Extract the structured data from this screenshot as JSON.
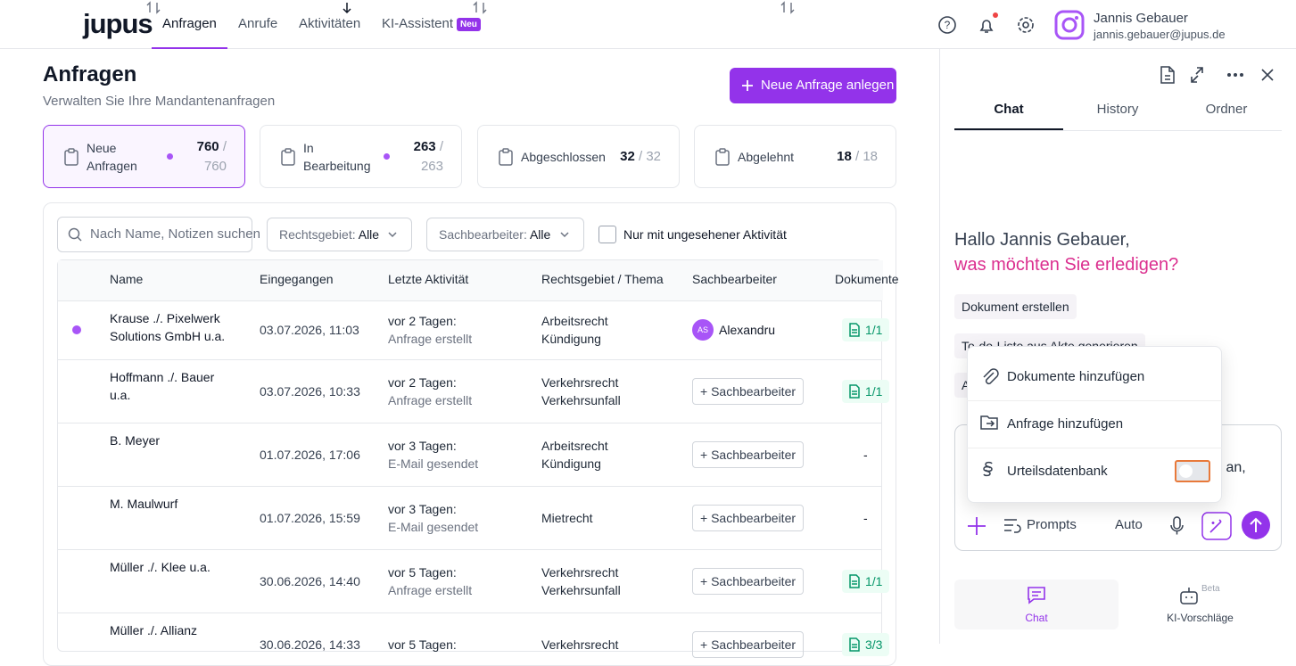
{
  "header": {
    "logo": "jupus",
    "nav": [
      "Anfragen",
      "Anrufe",
      "Aktivitäten",
      "KI-Assistent"
    ],
    "badge": "Neu",
    "user_name": "Jannis Gebauer",
    "user_email": "jannis.gebauer@jupus.de"
  },
  "page": {
    "title": "Anfragen",
    "subtitle": "Verwalten Sie Ihre Mandantenanfragen",
    "button": "Neue Anfrage anlegen"
  },
  "stats": {
    "separator": "/",
    "cards": [
      {
        "label": "Neue Anfragen",
        "count": 760,
        "total": 760,
        "dot": true,
        "selected": true
      },
      {
        "label": "In Bearbeitung",
        "count": 263,
        "total": 263,
        "dot": true,
        "selected": false
      },
      {
        "label": "Abgeschlossen",
        "count": 32,
        "total": 32,
        "dot": false,
        "selected": false
      },
      {
        "label": "Abgelehnt",
        "count": 18,
        "total": 18,
        "dot": false,
        "selected": false
      }
    ]
  },
  "filters": {
    "search": "Nach Name, Notizen suchen",
    "area_label": "Rechtsgebiet:",
    "area_value": "Alle",
    "agent_label": "Sachbearbeiter:",
    "agent_value": "Alle",
    "checkbox": "Nur mit ungesehener Aktivität"
  },
  "table": {
    "columns": [
      "Name",
      "Eingegangen",
      "Letzte Aktivität",
      "Rechtsgebiet / Thema",
      "Sachbearbeiter",
      "Dokumente"
    ],
    "rows": [
      {
        "unread": true,
        "name": "Krause ./. Pixelwerk Solutions GmbH u.a.",
        "date": "03.07.2026, 11:03",
        "activity": [
          "vor 2 Tagen:",
          "Anfrage erstellt"
        ],
        "area": [
          "Arbeitsrecht",
          "Kündigung"
        ],
        "agent_initials": "AS",
        "agent": "Alexandru",
        "docs": "1/1"
      },
      {
        "unread": false,
        "name": "Hoffmann ./. Bauer u.a.",
        "date": "03.07.2026, 10:33",
        "activity": [
          "vor 2 Tagen:",
          "Anfrage erstellt"
        ],
        "area": [
          "Verkehrsrecht",
          "Verkehrsunfall"
        ],
        "agent": "+ Sachbearbeiter",
        "docs": "1/1"
      },
      {
        "unread": false,
        "name": "B. Meyer",
        "date": "01.07.2026, 17:06",
        "activity": [
          "vor 3 Tagen:",
          "E-Mail gesendet"
        ],
        "area": [
          "Arbeitsrecht",
          "Kündigung"
        ],
        "agent": "+ Sachbearbeiter",
        "docs": "-"
      },
      {
        "unread": false,
        "name": "M. Maulwurf",
        "date": "01.07.2026, 15:59",
        "activity": [
          "vor 3 Tagen:",
          "E-Mail gesendet"
        ],
        "area": [
          "Mietrecht"
        ],
        "agent": "+ Sachbearbeiter",
        "docs": "-"
      },
      {
        "unread": false,
        "name": "Müller ./. Klee u.a.",
        "date": "30.06.2026, 14:40",
        "activity": [
          "vor 5 Tagen:",
          "Anfrage erstellt"
        ],
        "area": [
          "Verkehrsrecht",
          "Verkehrsunfall"
        ],
        "agent": "+ Sachbearbeiter",
        "docs": "1/1"
      },
      {
        "unread": false,
        "name": "Müller ./. Allianz",
        "date": "30.06.2026, 14:33",
        "activity": [
          "vor 5 Tagen:"
        ],
        "area": [
          "Verkehrsrecht"
        ],
        "agent": "+ Sachbearbeiter",
        "docs": "3/3"
      }
    ]
  },
  "panel": {
    "tabs": [
      "Chat",
      "History",
      "Ordner"
    ],
    "greeting": "Hallo Jannis Gebauer,",
    "question": "was möchten Sie erledigen?",
    "chips": [
      "Dokument erstellen",
      "To-do-Liste aus Akte generieren",
      "A"
    ],
    "menu": [
      "Dokumente hinzufügen",
      "Anfrage hinzufügen",
      "Urteilsdatenbank"
    ],
    "input_text": "z an,",
    "prompts": "Prompts",
    "mode": "Auto",
    "bottom": {
      "chat": "Chat",
      "suggestions": "KI-Vorschläge",
      "beta": "Beta"
    }
  }
}
